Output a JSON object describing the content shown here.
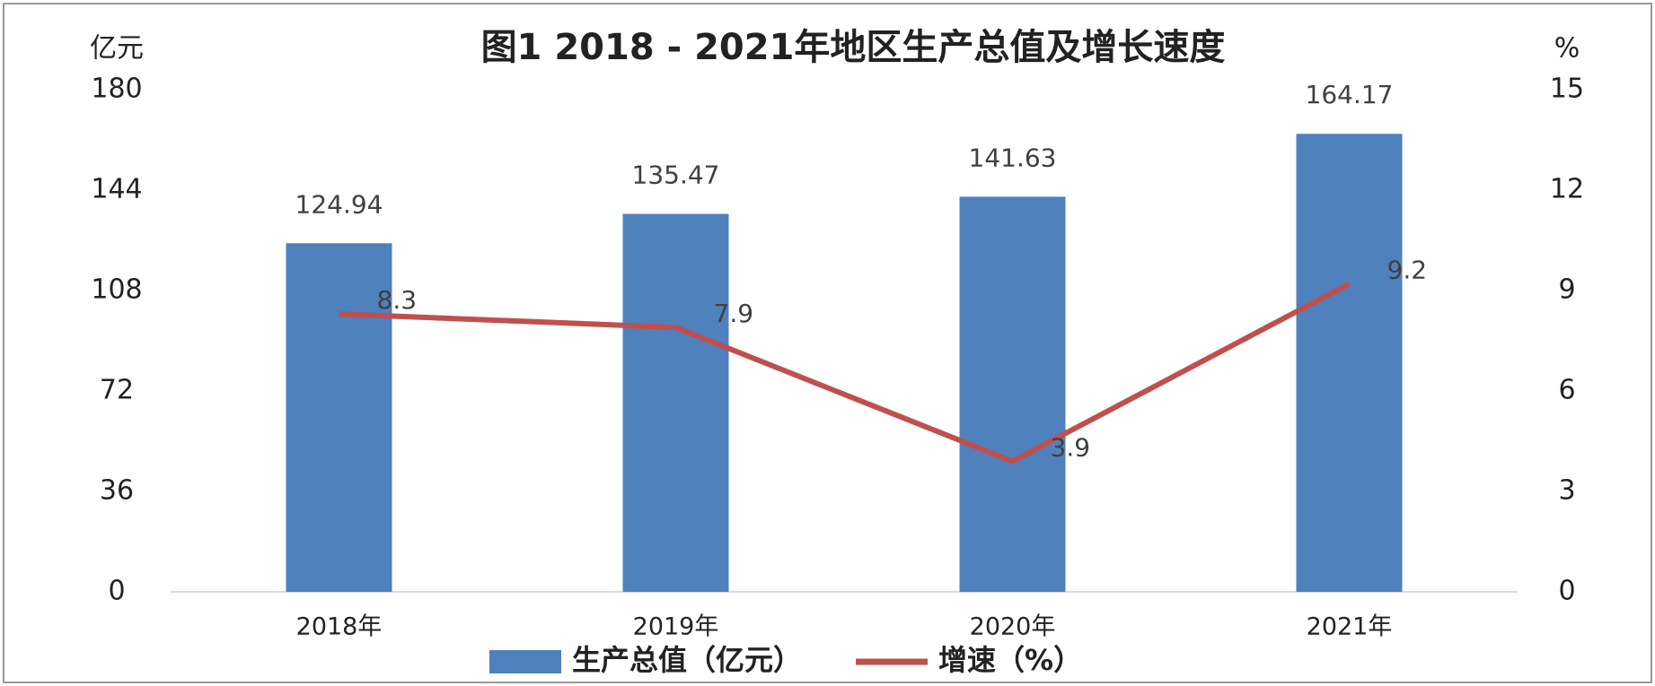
{
  "chart_data": {
    "type": "bar",
    "title": "图1  2018 - 2021年地区生产总值及增长速度",
    "y_label": "亿元",
    "y2_label": "%",
    "categories": [
      "2018年",
      "2019年",
      "2020年",
      "2021年"
    ],
    "series": [
      {
        "name": "生产总值（亿元）",
        "type": "bar",
        "color": "#4f81bd",
        "values": [
          124.94,
          135.47,
          141.63,
          164.17
        ]
      },
      {
        "name": "增速（%）",
        "type": "line",
        "axis": "y2",
        "color": "#c0504d",
        "values": [
          8.3,
          7.9,
          3.9,
          9.2
        ]
      }
    ],
    "ylim": [
      0,
      180
    ],
    "yticks": [
      0,
      36,
      72,
      108,
      144,
      180
    ],
    "y2lim": [
      0,
      15
    ],
    "y2ticks": [
      0,
      3,
      6,
      9,
      12,
      15
    ],
    "grid": false,
    "legend": "bottom"
  }
}
